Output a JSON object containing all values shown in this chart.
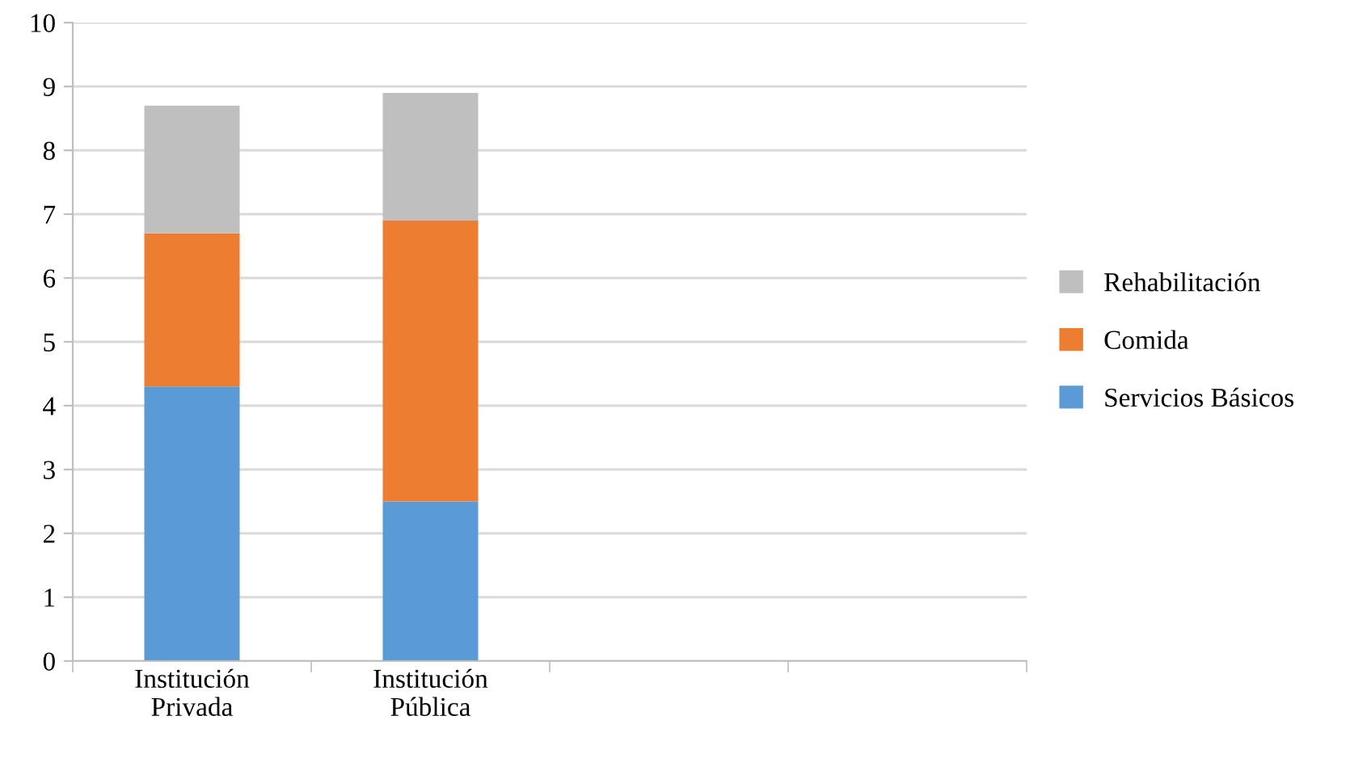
{
  "chart_data": {
    "type": "bar",
    "stacked": true,
    "categories": [
      "Institución\nPrivada",
      "Institución\nPública",
      null,
      null
    ],
    "series": [
      {
        "name": "Servicios Básicos",
        "color": "#5b9bd5",
        "values": [
          4.3,
          2.5,
          null,
          null
        ]
      },
      {
        "name": "Comida",
        "color": "#ed7d31",
        "values": [
          2.4,
          4.4,
          null,
          null
        ]
      },
      {
        "name": "Rehabilitación",
        "color": "#bfbfbf",
        "values": [
          2.0,
          2.0,
          null,
          null
        ]
      }
    ],
    "ylim": [
      0,
      10
    ],
    "yticks": [
      0,
      1,
      2,
      3,
      4,
      5,
      6,
      7,
      8,
      9,
      10
    ],
    "grid": "y",
    "legend": "right"
  }
}
